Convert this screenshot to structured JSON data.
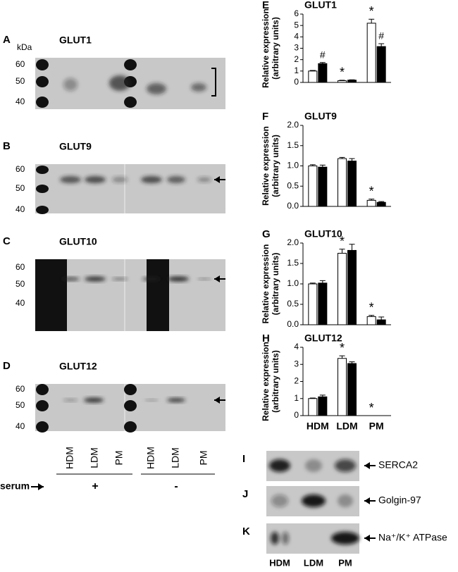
{
  "blots": [
    {
      "letter": "A",
      "title": "GLUT1",
      "unit": "kDa",
      "markers": [
        "60",
        "50",
        "40"
      ]
    },
    {
      "letter": "B",
      "title": "GLUT9",
      "markers": [
        "60",
        "50",
        "40"
      ]
    },
    {
      "letter": "C",
      "title": "GLUT10",
      "markers": [
        "60",
        "50",
        "40"
      ]
    },
    {
      "letter": "D",
      "title": "GLUT12",
      "markers": [
        "60",
        "50",
        "40"
      ]
    }
  ],
  "lanes": [
    "HDM",
    "LDM",
    "PM",
    "HDM",
    "LDM",
    "PM"
  ],
  "serum": {
    "label": "serum",
    "plus": "+",
    "minus": "-"
  },
  "markers_blots": [
    {
      "letter": "I",
      "label": "SERCA2"
    },
    {
      "letter": "J",
      "label": "Golgin-97"
    },
    {
      "letter": "K",
      "label": "Na⁺/K⁺ ATPase"
    }
  ],
  "marker_lanes": [
    "HDM",
    "LDM",
    "PM"
  ],
  "chart_data": [
    {
      "type": "bar",
      "letter": "E",
      "title": "GLUT1",
      "ylabel": [
        "Relative expression",
        "(arbitrary units)"
      ],
      "categories": [
        null,
        null,
        null
      ],
      "ylim": [
        0,
        6
      ],
      "yticks": [
        0,
        1,
        2,
        3,
        4,
        5,
        6
      ],
      "series": [
        {
          "color": "#ffffff",
          "values": [
            1.0,
            0.15,
            5.2
          ],
          "errors": [
            0.05,
            0.04,
            0.35
          ],
          "marks": [
            null,
            "*",
            "*"
          ]
        },
        {
          "color": "#000000",
          "values": [
            1.65,
            0.2,
            3.15
          ],
          "errors": [
            0.1,
            0.03,
            0.25
          ],
          "marks": [
            "#",
            null,
            "#"
          ]
        }
      ]
    },
    {
      "type": "bar",
      "letter": "F",
      "title": "GLUT9",
      "ylabel": [
        "Relative expression",
        "(arbitrary units)"
      ],
      "categories": [
        null,
        null,
        null
      ],
      "ylim": [
        0,
        2
      ],
      "yticks": [
        {
          "value": 0,
          "label": "0.0"
        },
        0.5,
        {
          "value": 1,
          "label": "1.0"
        },
        1.5,
        {
          "value": 2,
          "label": "2.0"
        }
      ],
      "series": [
        {
          "color": "#ffffff",
          "values": [
            1.0,
            1.18,
            0.15
          ],
          "errors": [
            0.03,
            0.03,
            0.03
          ],
          "marks": [
            null,
            null,
            "*"
          ]
        },
        {
          "color": "#000000",
          "values": [
            0.97,
            1.12,
            0.1
          ],
          "errors": [
            0.05,
            0.06,
            0.02
          ],
          "marks": [
            null,
            null,
            null
          ]
        }
      ]
    },
    {
      "type": "bar",
      "letter": "G",
      "title": "GLUT10",
      "ylabel": [
        "Relative expression",
        "(arbitrary units)"
      ],
      "categories": [
        null,
        null,
        null
      ],
      "ylim": [
        0,
        2
      ],
      "yticks": [
        {
          "value": 0,
          "label": "0.0"
        },
        0.5,
        {
          "value": 1,
          "label": "1.0"
        },
        1.5,
        {
          "value": 2,
          "label": "2.0"
        }
      ],
      "series": [
        {
          "color": "#ffffff",
          "values": [
            1.0,
            1.75,
            0.2
          ],
          "errors": [
            0.02,
            0.1,
            0.03
          ],
          "marks": [
            null,
            "*",
            "*"
          ]
        },
        {
          "color": "#000000",
          "values": [
            1.02,
            1.82,
            0.12
          ],
          "errors": [
            0.06,
            0.15,
            0.07
          ],
          "marks": [
            null,
            null,
            null
          ]
        }
      ]
    },
    {
      "type": "bar",
      "letter": "H",
      "title": "GLUT12",
      "ylabel": [
        "Relative expression",
        "(arbitrary units)"
      ],
      "categories": [
        "HDM",
        "LDM",
        "PM"
      ],
      "ylim": [
        0,
        4
      ],
      "yticks": [
        0,
        1,
        2,
        3,
        4
      ],
      "series": [
        {
          "color": "#ffffff",
          "values": [
            1.0,
            3.35,
            0
          ],
          "errors": [
            0.03,
            0.15,
            0
          ],
          "marks": [
            null,
            "*",
            "*"
          ]
        },
        {
          "color": "#000000",
          "values": [
            1.1,
            3.05,
            0
          ],
          "errors": [
            0.1,
            0.1,
            0
          ],
          "marks": [
            null,
            null,
            null
          ]
        }
      ]
    }
  ]
}
